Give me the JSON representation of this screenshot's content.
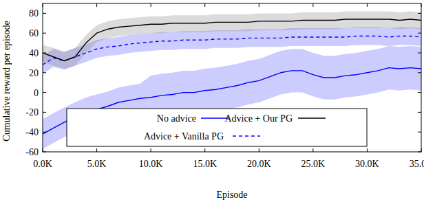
{
  "chart_data": {
    "type": "line",
    "x_label": "Episode",
    "y_label": "Cumulative reward per episode",
    "x": [
      0,
      1000,
      2000,
      3000,
      4000,
      5000,
      6000,
      7000,
      8000,
      9000,
      10000,
      11000,
      12000,
      13000,
      14000,
      15000,
      16000,
      17000,
      18000,
      19000,
      20000,
      21000,
      22000,
      23000,
      24000,
      25000,
      26000,
      27000,
      28000,
      29000,
      30000,
      31000,
      32000,
      33000,
      34000,
      35000
    ],
    "xlim": [
      0,
      35000
    ],
    "xticks": [
      {
        "value": 0,
        "label": "0.0K"
      },
      {
        "value": 5000,
        "label": "5.0K"
      },
      {
        "value": 10000,
        "label": "10.0K"
      },
      {
        "value": 15000,
        "label": "15.0K"
      },
      {
        "value": 20000,
        "label": "20.0K"
      },
      {
        "value": 25000,
        "label": "25.0K"
      },
      {
        "value": 30000,
        "label": "30.0K"
      },
      {
        "value": 35000,
        "label": "35.0K"
      }
    ],
    "ylim": [
      -60,
      90
    ],
    "yticks": [
      -60,
      -40,
      -20,
      0,
      20,
      40,
      60,
      80
    ],
    "grid": false,
    "legend": "bottom",
    "series": [
      {
        "name": "No advice",
        "color": "#0000ff",
        "line_style": "solid",
        "values": [
          -42,
          -36,
          -30,
          -25,
          -20,
          -17,
          -14,
          -10,
          -8,
          -6,
          -5,
          -3,
          -2,
          0,
          0,
          2,
          3,
          5,
          7,
          10,
          12,
          16,
          20,
          22,
          22,
          18,
          15,
          15,
          17,
          18,
          20,
          22,
          25,
          24,
          25,
          24
        ],
        "lower": [
          -57,
          -51,
          -45,
          -40,
          -35,
          -32,
          -29,
          -25,
          -23,
          -21,
          -27,
          -25,
          -24,
          -22,
          -22,
          -20,
          -19,
          -17,
          -15,
          -12,
          -10,
          -6,
          -2,
          0,
          0,
          -4,
          -7,
          -7,
          -5,
          -4,
          -2,
          0,
          3,
          2,
          3,
          2
        ],
        "upper": [
          -27,
          -21,
          -15,
          -10,
          -5,
          -2,
          1,
          5,
          7,
          9,
          17,
          19,
          20,
          22,
          22,
          24,
          25,
          27,
          29,
          32,
          34,
          38,
          42,
          44,
          44,
          40,
          37,
          37,
          39,
          40,
          42,
          44,
          47,
          46,
          47,
          46
        ]
      },
      {
        "name": "Advice + Vanilla PG",
        "color": "#0000ff",
        "line_style": "dashed",
        "values": [
          28,
          35,
          32,
          36,
          40,
          44,
          46,
          47,
          49,
          50,
          51,
          52,
          52,
          53,
          53,
          53,
          54,
          54,
          54,
          55,
          55,
          55,
          55,
          56,
          56,
          56,
          56,
          56,
          56,
          57,
          57,
          57,
          56,
          57,
          57,
          56
        ],
        "lower": [
          19,
          26,
          23,
          27,
          31,
          35,
          37,
          38,
          40,
          41,
          42,
          43,
          43,
          44,
          44,
          44,
          45,
          45,
          45,
          46,
          46,
          46,
          46,
          47,
          47,
          47,
          47,
          47,
          47,
          48,
          48,
          48,
          47,
          48,
          48,
          47
        ],
        "upper": [
          37,
          44,
          41,
          45,
          49,
          53,
          55,
          56,
          58,
          59,
          60,
          61,
          61,
          62,
          62,
          62,
          63,
          63,
          63,
          64,
          64,
          64,
          64,
          65,
          65,
          65,
          65,
          65,
          65,
          66,
          66,
          66,
          65,
          66,
          66,
          65
        ]
      },
      {
        "name": "Advice + Our PG",
        "color": "#000000",
        "line_style": "solid",
        "values": [
          40,
          36,
          32,
          36,
          50,
          60,
          64,
          66,
          67,
          68,
          69,
          69,
          70,
          70,
          70,
          70,
          71,
          71,
          71,
          71,
          72,
          72,
          72,
          72,
          73,
          73,
          73,
          73,
          74,
          74,
          74,
          74,
          74,
          73,
          74,
          73
        ],
        "lower": [
          31,
          27,
          24,
          27,
          40,
          51,
          55,
          57,
          58,
          59,
          60,
          60,
          61,
          61,
          61,
          61,
          62,
          62,
          62,
          62,
          63,
          63,
          63,
          63,
          64,
          64,
          64,
          64,
          65,
          65,
          65,
          65,
          65,
          64,
          65,
          64
        ],
        "upper": [
          48,
          45,
          41,
          45,
          58,
          68,
          72,
          74,
          75,
          76,
          77,
          77,
          78,
          78,
          78,
          78,
          79,
          79,
          79,
          79,
          80,
          80,
          80,
          80,
          81,
          81,
          81,
          81,
          82,
          82,
          82,
          82,
          82,
          81,
          82,
          81
        ]
      }
    ]
  }
}
